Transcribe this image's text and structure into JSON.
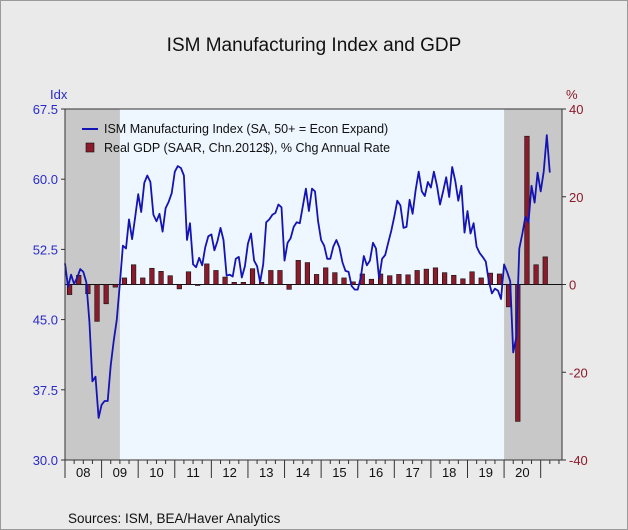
{
  "chart_data": {
    "type": "line",
    "title": "ISM Manufacturing Index and GDP",
    "left_axis": {
      "label": "Idx",
      "range": [
        30.0,
        67.5
      ],
      "ticks": [
        "67.5",
        "60.0",
        "52.5",
        "45.0",
        "37.5",
        "30.0"
      ],
      "color": "#2a2ac8"
    },
    "right_axis": {
      "label": "%",
      "range": [
        -40,
        40
      ],
      "ticks": [
        "40",
        "20",
        "0",
        "-20",
        "-40"
      ],
      "color": "#8b1a2a"
    },
    "x_axis": {
      "range": [
        2008.0,
        2021.583
      ],
      "tick_labels": [
        "08",
        "09",
        "10",
        "11",
        "12",
        "13",
        "14",
        "15",
        "16",
        "17",
        "18",
        "19",
        "20"
      ]
    },
    "legend": {
      "placement": "top-left",
      "entries": [
        "ISM Manufacturing Index (SA, 50+ = Econ Expand)",
        "Real GDP (SAAR, Chn.2012$), % Chg Annual Rate"
      ]
    },
    "recessions": [
      {
        "start": 2008.0,
        "end": 2009.5
      },
      {
        "start": 2020.0,
        "end": 2021.583
      }
    ],
    "series": [
      {
        "name": "ISM Manufacturing Index (SA, 50+ = Econ Expand)",
        "kind": "line",
        "axis": "left",
        "color": "#1414b4",
        "points": [
          [
            2008.0,
            51.0
          ],
          [
            2008.083,
            48.5
          ],
          [
            2008.167,
            49.8
          ],
          [
            2008.25,
            48.8
          ],
          [
            2008.333,
            49.5
          ],
          [
            2008.417,
            50.4
          ],
          [
            2008.5,
            50.1
          ],
          [
            2008.583,
            49.0
          ],
          [
            2008.667,
            44.8
          ],
          [
            2008.75,
            38.4
          ],
          [
            2008.833,
            38.9
          ],
          [
            2008.917,
            34.5
          ],
          [
            2009.0,
            35.9
          ],
          [
            2009.083,
            36.3
          ],
          [
            2009.167,
            36.3
          ],
          [
            2009.25,
            40.1
          ],
          [
            2009.333,
            42.8
          ],
          [
            2009.417,
            45.0
          ],
          [
            2009.5,
            48.9
          ],
          [
            2009.583,
            52.9
          ],
          [
            2009.667,
            52.6
          ],
          [
            2009.75,
            55.7
          ],
          [
            2009.833,
            53.6
          ],
          [
            2009.917,
            55.9
          ],
          [
            2010.0,
            58.4
          ],
          [
            2010.083,
            56.5
          ],
          [
            2010.167,
            59.6
          ],
          [
            2010.25,
            60.4
          ],
          [
            2010.333,
            59.7
          ],
          [
            2010.417,
            56.2
          ],
          [
            2010.5,
            55.5
          ],
          [
            2010.583,
            56.3
          ],
          [
            2010.667,
            54.4
          ],
          [
            2010.75,
            56.9
          ],
          [
            2010.833,
            57.6
          ],
          [
            2010.917,
            58.5
          ],
          [
            2011.0,
            60.8
          ],
          [
            2011.083,
            61.4
          ],
          [
            2011.167,
            61.2
          ],
          [
            2011.25,
            60.4
          ],
          [
            2011.333,
            53.5
          ],
          [
            2011.417,
            55.3
          ],
          [
            2011.5,
            50.9
          ],
          [
            2011.583,
            50.6
          ],
          [
            2011.667,
            51.6
          ],
          [
            2011.75,
            50.8
          ],
          [
            2011.833,
            52.7
          ],
          [
            2011.917,
            53.9
          ],
          [
            2012.0,
            54.1
          ],
          [
            2012.083,
            52.4
          ],
          [
            2012.167,
            53.4
          ],
          [
            2012.25,
            54.8
          ],
          [
            2012.333,
            53.5
          ],
          [
            2012.417,
            49.7
          ],
          [
            2012.5,
            49.8
          ],
          [
            2012.583,
            49.6
          ],
          [
            2012.667,
            51.5
          ],
          [
            2012.75,
            51.7
          ],
          [
            2012.833,
            49.5
          ],
          [
            2012.917,
            50.7
          ],
          [
            2013.0,
            53.1
          ],
          [
            2013.083,
            54.2
          ],
          [
            2013.167,
            51.3
          ],
          [
            2013.25,
            50.7
          ],
          [
            2013.333,
            49.0
          ],
          [
            2013.417,
            50.9
          ],
          [
            2013.5,
            55.4
          ],
          [
            2013.583,
            55.7
          ],
          [
            2013.667,
            56.2
          ],
          [
            2013.75,
            56.4
          ],
          [
            2013.833,
            57.3
          ],
          [
            2013.917,
            57.0
          ],
          [
            2014.0,
            51.3
          ],
          [
            2014.083,
            53.2
          ],
          [
            2014.167,
            53.7
          ],
          [
            2014.25,
            54.9
          ],
          [
            2014.333,
            55.4
          ],
          [
            2014.417,
            55.3
          ],
          [
            2014.5,
            57.1
          ],
          [
            2014.583,
            59.0
          ],
          [
            2014.667,
            56.6
          ],
          [
            2014.75,
            59.0
          ],
          [
            2014.833,
            58.7
          ],
          [
            2014.917,
            55.5
          ],
          [
            2015.0,
            53.5
          ],
          [
            2015.083,
            52.9
          ],
          [
            2015.167,
            51.5
          ],
          [
            2015.25,
            51.5
          ],
          [
            2015.333,
            52.8
          ],
          [
            2015.417,
            53.5
          ],
          [
            2015.5,
            52.7
          ],
          [
            2015.583,
            51.1
          ],
          [
            2015.667,
            50.2
          ],
          [
            2015.75,
            50.1
          ],
          [
            2015.833,
            48.6
          ],
          [
            2015.917,
            48.2
          ],
          [
            2016.0,
            48.2
          ],
          [
            2016.083,
            49.5
          ],
          [
            2016.167,
            51.8
          ],
          [
            2016.25,
            50.8
          ],
          [
            2016.333,
            51.3
          ],
          [
            2016.417,
            53.2
          ],
          [
            2016.5,
            52.6
          ],
          [
            2016.583,
            49.4
          ],
          [
            2016.667,
            51.5
          ],
          [
            2016.75,
            51.9
          ],
          [
            2016.833,
            53.2
          ],
          [
            2016.917,
            54.5
          ],
          [
            2017.0,
            56.0
          ],
          [
            2017.083,
            57.7
          ],
          [
            2017.167,
            57.2
          ],
          [
            2017.25,
            54.8
          ],
          [
            2017.333,
            54.9
          ],
          [
            2017.417,
            57.8
          ],
          [
            2017.5,
            56.3
          ],
          [
            2017.583,
            58.8
          ],
          [
            2017.667,
            60.8
          ],
          [
            2017.75,
            58.7
          ],
          [
            2017.833,
            58.2
          ],
          [
            2017.917,
            59.7
          ],
          [
            2018.0,
            59.1
          ],
          [
            2018.083,
            60.8
          ],
          [
            2018.167,
            59.3
          ],
          [
            2018.25,
            57.3
          ],
          [
            2018.333,
            58.7
          ],
          [
            2018.417,
            60.2
          ],
          [
            2018.5,
            58.1
          ],
          [
            2018.583,
            61.3
          ],
          [
            2018.667,
            59.8
          ],
          [
            2018.75,
            57.7
          ],
          [
            2018.833,
            59.3
          ],
          [
            2018.917,
            54.3
          ],
          [
            2019.0,
            56.6
          ],
          [
            2019.083,
            54.2
          ],
          [
            2019.167,
            55.3
          ],
          [
            2019.25,
            52.8
          ],
          [
            2019.333,
            52.1
          ],
          [
            2019.417,
            51.7
          ],
          [
            2019.5,
            51.2
          ],
          [
            2019.583,
            49.1
          ],
          [
            2019.667,
            47.8
          ],
          [
            2019.75,
            48.3
          ],
          [
            2019.833,
            48.1
          ],
          [
            2019.917,
            47.2
          ],
          [
            2020.0,
            50.9
          ],
          [
            2020.083,
            50.1
          ],
          [
            2020.167,
            49.1
          ],
          [
            2020.25,
            41.5
          ],
          [
            2020.333,
            43.1
          ],
          [
            2020.417,
            52.6
          ],
          [
            2020.5,
            54.2
          ],
          [
            2020.583,
            56.0
          ],
          [
            2020.667,
            55.4
          ],
          [
            2020.75,
            59.3
          ],
          [
            2020.833,
            57.5
          ],
          [
            2020.917,
            60.7
          ],
          [
            2021.0,
            58.7
          ],
          [
            2021.083,
            60.8
          ],
          [
            2021.167,
            64.7
          ],
          [
            2021.25,
            60.7
          ]
        ]
      },
      {
        "name": "Real GDP (SAAR, Chn.2012$), % Chg Annual Rate",
        "kind": "bar",
        "axis": "right",
        "color": "#8b1a2a",
        "points": [
          [
            2008.125,
            -2.3
          ],
          [
            2008.375,
            2.1
          ],
          [
            2008.625,
            -2.1
          ],
          [
            2008.875,
            -8.4
          ],
          [
            2009.125,
            -4.4
          ],
          [
            2009.375,
            -0.6
          ],
          [
            2009.625,
            1.5
          ],
          [
            2009.875,
            4.5
          ],
          [
            2010.125,
            1.5
          ],
          [
            2010.375,
            3.7
          ],
          [
            2010.625,
            3.0
          ],
          [
            2010.875,
            2.0
          ],
          [
            2011.125,
            -1.0
          ],
          [
            2011.375,
            2.9
          ],
          [
            2011.625,
            -0.1
          ],
          [
            2011.875,
            4.7
          ],
          [
            2012.125,
            3.2
          ],
          [
            2012.375,
            1.7
          ],
          [
            2012.625,
            0.5
          ],
          [
            2012.875,
            0.5
          ],
          [
            2013.125,
            3.6
          ],
          [
            2013.375,
            0.5
          ],
          [
            2013.625,
            3.2
          ],
          [
            2013.875,
            3.2
          ],
          [
            2014.125,
            -1.1
          ],
          [
            2014.375,
            5.5
          ],
          [
            2014.625,
            5.0
          ],
          [
            2014.875,
            2.3
          ],
          [
            2015.125,
            3.8
          ],
          [
            2015.375,
            2.7
          ],
          [
            2015.625,
            1.5
          ],
          [
            2015.875,
            0.6
          ],
          [
            2016.125,
            2.4
          ],
          [
            2016.375,
            1.2
          ],
          [
            2016.625,
            2.4
          ],
          [
            2016.875,
            2.0
          ],
          [
            2017.125,
            2.3
          ],
          [
            2017.375,
            2.2
          ],
          [
            2017.625,
            3.2
          ],
          [
            2017.875,
            3.5
          ],
          [
            2018.125,
            3.8
          ],
          [
            2018.375,
            2.7
          ],
          [
            2018.625,
            2.1
          ],
          [
            2018.875,
            1.3
          ],
          [
            2019.125,
            2.9
          ],
          [
            2019.375,
            1.5
          ],
          [
            2019.625,
            2.6
          ],
          [
            2019.875,
            2.4
          ],
          [
            2020.125,
            -5.1
          ],
          [
            2020.375,
            -31.2
          ],
          [
            2020.625,
            33.8
          ],
          [
            2020.875,
            4.5
          ],
          [
            2021.125,
            6.3
          ]
        ]
      }
    ],
    "source_note": "Sources:   ISM, BEA/Haver Analytics"
  }
}
